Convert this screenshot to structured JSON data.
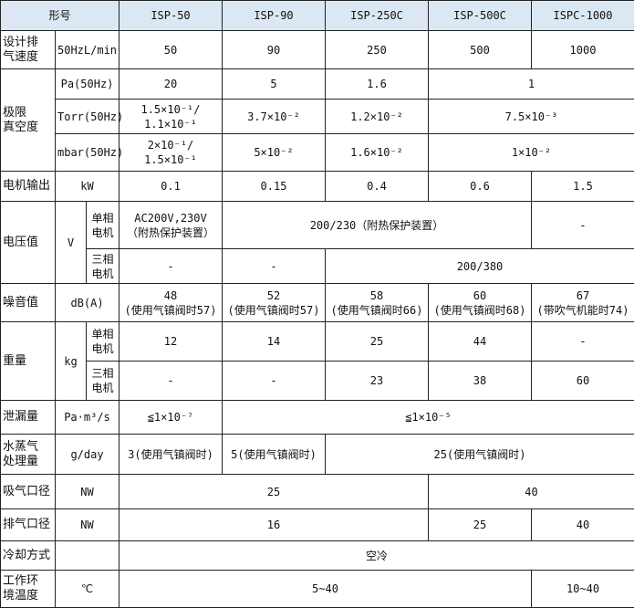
{
  "colors": {
    "header_background": "#dbe8f4",
    "border": "#222222"
  },
  "table": {
    "header": [
      "形号",
      "ISP-50",
      "ISP-90",
      "ISP-250C",
      "ISP-500C",
      "ISPC-1000"
    ],
    "rows": [
      [
        "设计排\n气速度",
        "50HzL/min",
        "50",
        "90",
        "250",
        "500",
        "1000"
      ],
      [
        "极限\n真空度",
        "Pa(50Hz)",
        "20",
        "5",
        "1.6",
        "1"
      ],
      [
        "Torr(50Hz)",
        "1.5×10⁻¹/\n1.1×10⁻¹",
        "3.7×10⁻²",
        "1.2×10⁻²",
        "7.5×10⁻³"
      ],
      [
        "mbar(50Hz)",
        "2×10⁻¹/\n1.5×10⁻¹",
        "5×10⁻²",
        "1.6×10⁻²",
        "1×10⁻²"
      ],
      [
        "电机输出",
        "kW",
        "0.1",
        "0.15",
        "0.4",
        "0.6",
        "1.5"
      ],
      [
        "电压值",
        "V",
        "单相\n电机",
        "AC200V,230V\n（附热保护装置）",
        "200/230（附热保护装置）",
        "-"
      ],
      [
        "三相\n电机",
        "-",
        "-",
        "200/380"
      ],
      [
        "噪音值",
        "dB(A)",
        "48\n(使用气镇阀时57)",
        "52\n(使用气镇阀时57)",
        "58\n(使用气镇阀时66)",
        "60\n(使用气镇阀时68)",
        "67\n(带吹气机能时74)"
      ],
      [
        "重量",
        "kg",
        "单相\n电机",
        "12",
        "14",
        "25",
        "44",
        "-"
      ],
      [
        "三相\n电机",
        "-",
        "-",
        "23",
        "38",
        "60"
      ],
      [
        "泄漏量",
        "Pa·m³/s",
        "≦1×10⁻⁷",
        "≦1×10⁻⁵"
      ],
      [
        "水蒸气\n处理量",
        "g/day",
        "3(使用气镇阀时)",
        "5(使用气镇阀时)",
        "25(使用气镇阀时)"
      ],
      [
        "吸气口径",
        "NW",
        "25",
        "40"
      ],
      [
        "排气口径",
        "NW",
        "16",
        "25",
        "40"
      ],
      [
        "冷却方式",
        "",
        "空冷"
      ],
      [
        "工作环\n境温度",
        "℃",
        "5~40",
        "10~40"
      ]
    ]
  }
}
